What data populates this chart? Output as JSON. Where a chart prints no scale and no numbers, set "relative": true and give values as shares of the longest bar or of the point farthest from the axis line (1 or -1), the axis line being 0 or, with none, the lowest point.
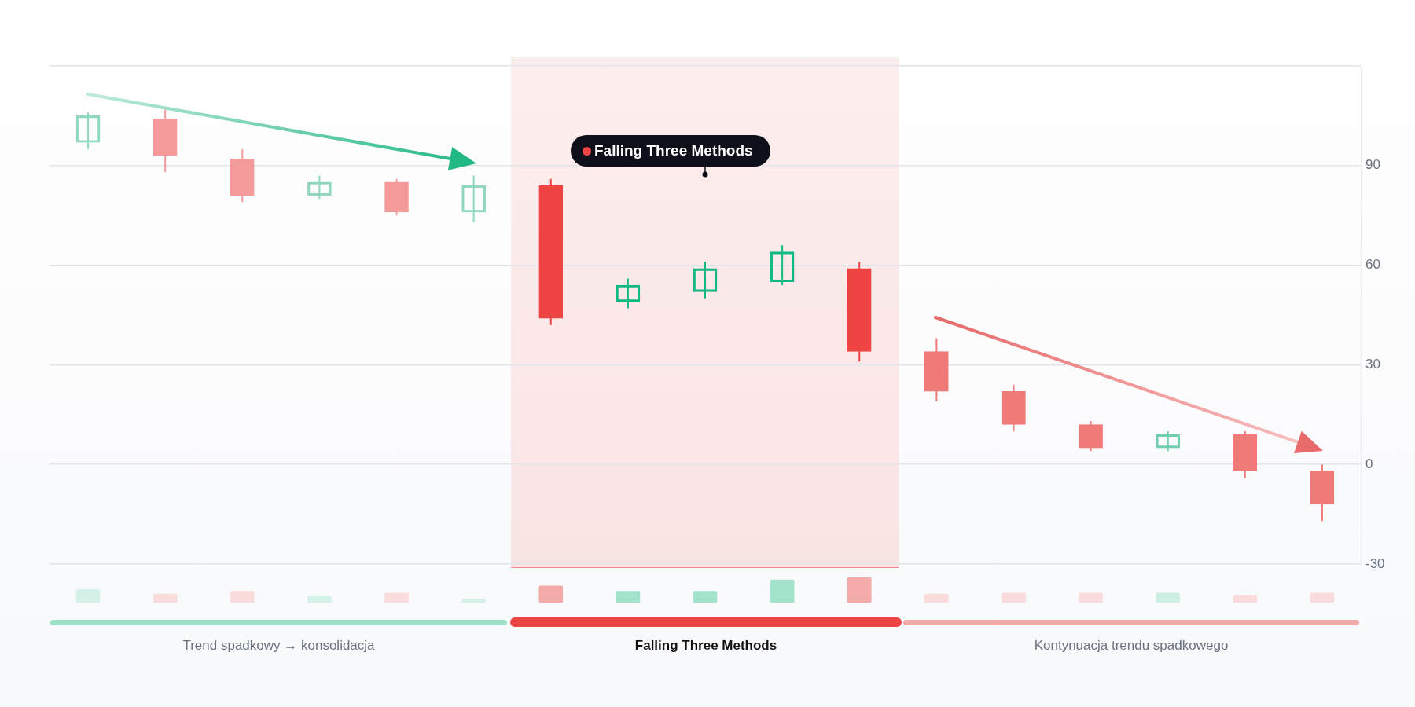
{
  "chart_data": [
    {
      "type": "candlestick",
      "categories": [
        null,
        null,
        null,
        null,
        null,
        null,
        null,
        null,
        null,
        null,
        null,
        null,
        null,
        null,
        null,
        null,
        null
      ],
      "ohlc": [
        [
          97,
          106,
          95,
          105
        ],
        [
          104,
          107,
          88,
          93
        ],
        [
          92,
          95,
          79,
          81
        ],
        [
          81,
          87,
          80,
          85
        ],
        [
          85,
          86,
          75,
          76
        ],
        [
          76,
          87,
          73,
          84
        ],
        [
          84,
          86,
          42,
          44
        ],
        [
          49,
          56,
          47,
          54
        ],
        [
          52,
          61,
          50,
          59
        ],
        [
          55,
          66,
          54,
          64
        ],
        [
          59,
          61,
          31,
          34
        ],
        [
          34,
          38,
          19,
          22
        ],
        [
          22,
          24,
          10,
          12
        ],
        [
          12,
          13,
          4,
          5
        ],
        [
          5,
          10,
          4,
          9
        ],
        [
          9,
          10,
          -4,
          -2
        ],
        [
          -2,
          0,
          -17,
          -12
        ]
      ],
      "colors": [
        "#8fd8bf",
        "#f59a9a",
        "#f59a9a",
        "#8fd8bf",
        "#f59a9a",
        "#8fd8bf",
        "#ef4444",
        "#10b981",
        "#10b981",
        "#10b981",
        "#ef4444",
        "#f07a7a",
        "#f07a7a",
        "#f07a7a",
        "#6fcfae",
        "#f07a7a",
        "#f07a7a"
      ],
      "ylim": [
        -30,
        120
      ],
      "yticks": [
        {
          "value": 120,
          "label": null
        },
        90,
        60,
        30,
        0,
        -30
      ],
      "grid": "y",
      "legend": false,
      "tick_labels": "y",
      "annotations": [
        "Falling Three Methods",
        "Trend spadkowy → konsolidacja",
        "Falling Three Methods",
        "Kontynuacja trendu spadkowego"
      ]
    },
    {
      "type": "bar",
      "relative": true,
      "legend": false,
      "tick_labels": false,
      "categories": [
        null,
        null,
        null,
        null,
        null,
        null,
        null,
        null,
        null,
        null,
        null,
        null,
        null,
        null,
        null,
        null,
        null
      ],
      "values": [
        0.52,
        0.34,
        0.45,
        0.24,
        0.38,
        0.14,
        0.66,
        0.45,
        0.45,
        0.9,
        1,
        0.34,
        0.38,
        0.38,
        0.38,
        0.28,
        0.38
      ],
      "colors": [
        "#d3f1e6",
        "#fbdcdc",
        "#fbdcdc",
        "#d3f1e6",
        "#fbdcdc",
        "#d3f1e6",
        "#f5aaaa",
        "#a3e3cc",
        "#a3e3cc",
        "#a3e3cc",
        "#f5aaaa",
        "#fbdcdc",
        "#fbdcdc",
        "#fbdcdc",
        "#cdeee2",
        "#fbdcdc",
        "#fbdcdc"
      ]
    }
  ]
}
